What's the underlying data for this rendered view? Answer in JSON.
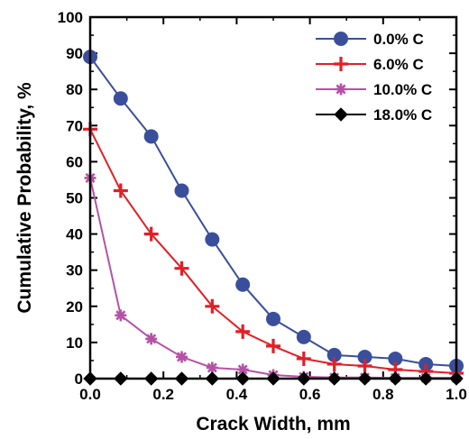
{
  "chart_data": {
    "type": "line",
    "xlabel": "Crack Width, mm",
    "ylabel": "Cumulative Probability, %",
    "xlim": [
      0.0,
      1.0
    ],
    "ylim": [
      0,
      100
    ],
    "x_ticks": [
      "0.0",
      "0.2",
      "0.4",
      "0.6",
      "0.8",
      "1.0"
    ],
    "y_ticks": [
      "0",
      "10",
      "20",
      "30",
      "40",
      "50",
      "60",
      "70",
      "80",
      "90",
      "100"
    ],
    "grid": false,
    "legend_position": "top-right",
    "x": [
      0.0,
      0.0833,
      0.1667,
      0.25,
      0.3333,
      0.4167,
      0.5,
      0.5833,
      0.6667,
      0.75,
      0.8333,
      0.9167,
      1.0
    ],
    "series": [
      {
        "name": "0.0% C",
        "color": "#3a4f9c",
        "marker": "circle",
        "values": [
          89,
          77.5,
          67,
          52,
          38.5,
          26,
          16.5,
          11.5,
          6.5,
          6,
          5.5,
          4,
          3.5
        ]
      },
      {
        "name": "6.0% C",
        "color": "#e11f26",
        "marker": "plus",
        "values": [
          69,
          52,
          40,
          30.5,
          20,
          13,
          9,
          5.5,
          4,
          3.5,
          2.5,
          2,
          1.5
        ]
      },
      {
        "name": "10.0% C",
        "color": "#b552a6",
        "marker": "star",
        "values": [
          55.5,
          17.5,
          11,
          6,
          3,
          2.5,
          1,
          0.5,
          0.3,
          0.3,
          0.2,
          0.2,
          0.2
        ]
      },
      {
        "name": "18.0% C",
        "color": "#000000",
        "marker": "diamond",
        "values": [
          0,
          0,
          0,
          0,
          0,
          0,
          0,
          0,
          0,
          0,
          0,
          0,
          0
        ]
      }
    ]
  }
}
